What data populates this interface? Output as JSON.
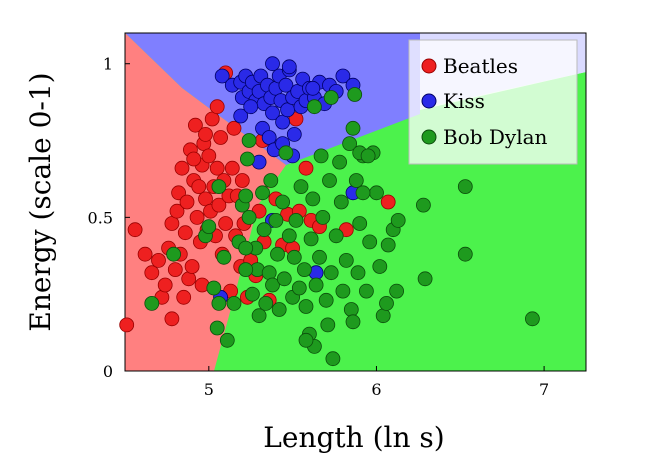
{
  "chart_data": {
    "type": "scatter",
    "title": "",
    "xlabel": "Length (ln s)",
    "ylabel": "Energy (scale 0-1)",
    "xlim": [
      4.5,
      7.25
    ],
    "ylim": [
      0,
      1.1
    ],
    "x_ticks": [
      {
        "value": 5,
        "label": "5"
      },
      {
        "value": 6,
        "label": "6"
      },
      {
        "value": 7,
        "label": "7"
      }
    ],
    "y_ticks": [
      {
        "value": 0,
        "label": "0"
      },
      {
        "value": 0.5,
        "label": "0.5"
      },
      {
        "value": 1,
        "label": "1"
      }
    ],
    "legend_position": "top-right",
    "grid": false,
    "decision_regions": {
      "red_region_color": "#ff8080",
      "blue_region_color": "#7f7fff",
      "green_region_color": "#4cf24c",
      "white_region_color": "#d9ffd9",
      "lavender_region_color": "#dadaff"
    },
    "series": [
      {
        "name": "Beatles",
        "color": "#ee2020",
        "points": [
          [
            4.51,
            0.15
          ],
          [
            4.56,
            0.46
          ],
          [
            4.62,
            0.38
          ],
          [
            4.66,
            0.32
          ],
          [
            4.7,
            0.36
          ],
          [
            4.72,
            0.24
          ],
          [
            4.74,
            0.28
          ],
          [
            4.76,
            0.4
          ],
          [
            4.78,
            0.48
          ],
          [
            4.78,
            0.17
          ],
          [
            4.8,
            0.33
          ],
          [
            4.81,
            0.52
          ],
          [
            4.82,
            0.58
          ],
          [
            4.83,
            0.38
          ],
          [
            4.84,
            0.66
          ],
          [
            4.85,
            0.24
          ],
          [
            4.86,
            0.45
          ],
          [
            4.87,
            0.55
          ],
          [
            4.88,
            0.3
          ],
          [
            4.89,
            0.72
          ],
          [
            4.9,
            0.34
          ],
          [
            4.91,
            0.62
          ],
          [
            4.92,
            0.8
          ],
          [
            4.93,
            0.5
          ],
          [
            4.94,
            0.6
          ],
          [
            4.95,
            0.42
          ],
          [
            4.96,
            0.67
          ],
          [
            4.96,
            0.28
          ],
          [
            4.97,
            0.74
          ],
          [
            4.98,
            0.56
          ],
          [
            4.99,
            0.46
          ],
          [
            5.0,
            0.7
          ],
          [
            5.01,
            0.52
          ],
          [
            5.02,
            0.82
          ],
          [
            5.03,
            0.6
          ],
          [
            5.04,
            0.44
          ],
          [
            5.05,
            0.66
          ],
          [
            5.06,
            0.54
          ],
          [
            5.07,
            0.76
          ],
          [
            5.08,
            0.38
          ],
          [
            5.09,
            0.62
          ],
          [
            5.1,
            0.48
          ],
          [
            5.12,
            0.57
          ],
          [
            5.13,
            0.26
          ],
          [
            5.14,
            0.66
          ],
          [
            5.15,
            0.79
          ],
          [
            5.16,
            0.44
          ],
          [
            5.17,
            0.57
          ],
          [
            5.19,
            0.34
          ],
          [
            5.2,
            0.62
          ],
          [
            5.21,
            0.48
          ],
          [
            5.23,
            0.24
          ],
          [
            5.25,
            0.36
          ],
          [
            5.28,
            0.31
          ],
          [
            5.3,
            0.52
          ],
          [
            5.33,
            0.42
          ],
          [
            5.36,
            0.23
          ],
          [
            5.4,
            0.56
          ],
          [
            5.44,
            0.41
          ],
          [
            5.47,
            0.51
          ],
          [
            5.5,
            0.4
          ],
          [
            5.54,
            0.52
          ],
          [
            5.58,
            0.66
          ],
          [
            5.61,
            0.49
          ],
          [
            5.66,
            0.47
          ],
          [
            5.82,
            0.46
          ],
          [
            6.07,
            0.55
          ],
          [
            5.1,
            0.97
          ],
          [
            5.05,
            0.86
          ],
          [
            4.98,
            0.77
          ],
          [
            4.91,
            0.69
          ],
          [
            5.32,
            0.75
          ],
          [
            5.52,
            0.82
          ]
        ]
      },
      {
        "name": "Kiss",
        "color": "#2a2ae8",
        "points": [
          [
            5.08,
            0.96
          ],
          [
            5.14,
            0.93
          ],
          [
            5.19,
            0.94
          ],
          [
            5.22,
            0.96
          ],
          [
            5.2,
            0.89
          ],
          [
            5.24,
            0.91
          ],
          [
            5.26,
            0.94
          ],
          [
            5.28,
            0.88
          ],
          [
            5.31,
            0.96
          ],
          [
            5.3,
            0.91
          ],
          [
            5.33,
            0.87
          ],
          [
            5.35,
            0.93
          ],
          [
            5.37,
            0.89
          ],
          [
            5.38,
            0.84
          ],
          [
            5.4,
            0.92
          ],
          [
            5.42,
            0.96
          ],
          [
            5.43,
            0.88
          ],
          [
            5.44,
            0.81
          ],
          [
            5.46,
            0.93
          ],
          [
            5.47,
            0.85
          ],
          [
            5.48,
            0.98
          ],
          [
            5.5,
            0.89
          ],
          [
            5.51,
            0.77
          ],
          [
            5.53,
            0.91
          ],
          [
            5.55,
            0.86
          ],
          [
            5.56,
            0.95
          ],
          [
            5.58,
            0.88
          ],
          [
            5.6,
            0.92
          ],
          [
            5.63,
            0.89
          ],
          [
            5.66,
            0.94
          ],
          [
            5.69,
            0.87
          ],
          [
            5.72,
            0.93
          ],
          [
            5.76,
            0.91
          ],
          [
            5.8,
            0.96
          ],
          [
            5.86,
            0.93
          ],
          [
            5.32,
            0.79
          ],
          [
            5.36,
            0.76
          ],
          [
            5.39,
            0.72
          ],
          [
            5.44,
            0.74
          ],
          [
            5.5,
            0.7
          ],
          [
            5.19,
            0.83
          ],
          [
            5.25,
            0.86
          ],
          [
            5.3,
            0.68
          ],
          [
            5.62,
            0.92
          ],
          [
            5.07,
            0.24
          ],
          [
            5.38,
            0.49
          ],
          [
            5.64,
            0.32
          ],
          [
            5.86,
            0.58
          ],
          [
            5.38,
            1.0
          ],
          [
            5.48,
            0.99
          ]
        ]
      },
      {
        "name": "Bob Dylan",
        "color": "#1e9a1e",
        "points": [
          [
            4.66,
            0.22
          ],
          [
            4.79,
            0.38
          ],
          [
            4.98,
            0.44
          ],
          [
            5.0,
            0.47
          ],
          [
            5.03,
            0.27
          ],
          [
            5.06,
            0.6
          ],
          [
            5.06,
            0.22
          ],
          [
            5.09,
            0.37
          ],
          [
            5.11,
            0.1
          ],
          [
            5.18,
            0.42
          ],
          [
            5.2,
            0.54
          ],
          [
            5.22,
            0.57
          ],
          [
            5.23,
            0.69
          ],
          [
            5.24,
            0.5
          ],
          [
            5.26,
            0.25
          ],
          [
            5.28,
            0.4
          ],
          [
            5.29,
            0.33
          ],
          [
            5.3,
            0.18
          ],
          [
            5.32,
            0.58
          ],
          [
            5.33,
            0.46
          ],
          [
            5.34,
            0.22
          ],
          [
            5.36,
            0.32
          ],
          [
            5.37,
            0.62
          ],
          [
            5.38,
            0.28
          ],
          [
            5.4,
            0.49
          ],
          [
            5.41,
            0.38
          ],
          [
            5.42,
            0.2
          ],
          [
            5.44,
            0.55
          ],
          [
            5.45,
            0.3
          ],
          [
            5.46,
            0.71
          ],
          [
            5.48,
            0.44
          ],
          [
            5.5,
            0.24
          ],
          [
            5.51,
            0.37
          ],
          [
            5.52,
            0.49
          ],
          [
            5.54,
            0.27
          ],
          [
            5.55,
            0.6
          ],
          [
            5.57,
            0.33
          ],
          [
            5.58,
            0.21
          ],
          [
            5.6,
            0.12
          ],
          [
            5.61,
            0.43
          ],
          [
            5.62,
            0.56
          ],
          [
            5.63,
            0.08
          ],
          [
            5.64,
            0.28
          ],
          [
            5.66,
            0.37
          ],
          [
            5.67,
            0.7
          ],
          [
            5.68,
            0.5
          ],
          [
            5.7,
            0.23
          ],
          [
            5.71,
            0.15
          ],
          [
            5.72,
            0.62
          ],
          [
            5.73,
            0.32
          ],
          [
            5.74,
            0.04
          ],
          [
            5.76,
            0.44
          ],
          [
            5.78,
            0.68
          ],
          [
            5.79,
            0.55
          ],
          [
            5.8,
            0.26
          ],
          [
            5.82,
            0.36
          ],
          [
            5.84,
            0.74
          ],
          [
            5.85,
            0.2
          ],
          [
            5.86,
            0.16
          ],
          [
            5.87,
            0.9
          ],
          [
            5.88,
            0.62
          ],
          [
            5.89,
            0.32
          ],
          [
            5.9,
            0.48
          ],
          [
            5.92,
            0.7
          ],
          [
            5.94,
            0.26
          ],
          [
            5.96,
            0.42
          ],
          [
            5.98,
            0.71
          ],
          [
            6.0,
            0.58
          ],
          [
            6.02,
            0.34
          ],
          [
            6.04,
            0.18
          ],
          [
            6.06,
            0.22
          ],
          [
            6.07,
            0.41
          ],
          [
            6.1,
            0.46
          ],
          [
            6.12,
            0.26
          ],
          [
            6.13,
            0.49
          ],
          [
            6.28,
            0.54
          ],
          [
            6.29,
            0.3
          ],
          [
            6.53,
            0.6
          ],
          [
            6.53,
            0.38
          ],
          [
            6.93,
            0.17
          ],
          [
            5.63,
            0.86
          ],
          [
            5.73,
            0.89
          ],
          [
            5.86,
            0.79
          ],
          [
            5.9,
            0.71
          ],
          [
            5.92,
            0.58
          ],
          [
            5.95,
            0.7
          ],
          [
            5.22,
            0.4
          ],
          [
            5.15,
            0.22
          ],
          [
            5.22,
            0.33
          ],
          [
            5.05,
            0.14
          ],
          [
            5.58,
            0.1
          ],
          [
            5.24,
            0.75
          ]
        ]
      }
    ]
  }
}
